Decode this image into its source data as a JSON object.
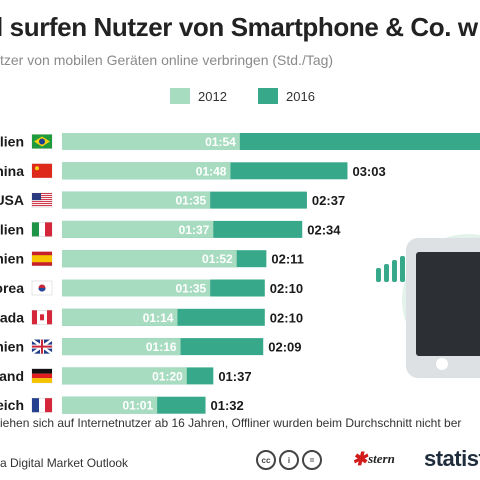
{
  "header": {
    "title": "l surfen Nutzer von Smartphone & Co. w",
    "subtitle": "tzer von mobilen Geräten online verbringen (Std./Tag)"
  },
  "legend": {
    "items": [
      {
        "label": "2012",
        "color": "#a8dcc0"
      },
      {
        "label": "2016",
        "color": "#38a88a"
      }
    ]
  },
  "chart_data": {
    "type": "bar",
    "orientation": "horizontal",
    "categories": [
      "ilien",
      "hina",
      "USA",
      "alien",
      "hien",
      "orea",
      "nada",
      "hien",
      "and",
      "eich"
    ],
    "flags": [
      "brazil",
      "china",
      "usa",
      "italy",
      "spain",
      "korea",
      "canada",
      "uk",
      "germany",
      "france"
    ],
    "series": [
      {
        "name": "2012",
        "color": "#a8dcc0",
        "values": [
          114,
          108,
          95,
          97,
          112,
          95,
          74,
          76,
          80,
          61
        ],
        "labels": [
          "01:54",
          "01:48",
          "01:35",
          "01:37",
          "01:52",
          "01:35",
          "01:14",
          "01:16",
          "01:20",
          "01:01"
        ]
      },
      {
        "name": "2016",
        "color": "#38a88a",
        "values": [
          null,
          183,
          157,
          154,
          131,
          130,
          130,
          129,
          97,
          92
        ],
        "labels": [
          "",
          "03:03",
          "02:37",
          "02:34",
          "02:11",
          "02:10",
          "02:10",
          "02:09",
          "01:37",
          "01:32"
        ]
      }
    ],
    "value_unit": "minutes per day",
    "legend_position": "top",
    "grid": false
  },
  "illustration": {
    "icon": "smartphone-icon",
    "signal_icon": "signal-bars-icon",
    "circle_color": "#e3f3ec"
  },
  "footer": {
    "footnote": "iehen sich auf Internetnutzer ab 16 Jahren, Offliner wurden beim Durchschnitt nicht ber",
    "source": "a Digital Market Outlook",
    "cc_icons": [
      "cc",
      "i",
      "="
    ],
    "partner_logo": "stern",
    "brand_logo": "statist"
  }
}
